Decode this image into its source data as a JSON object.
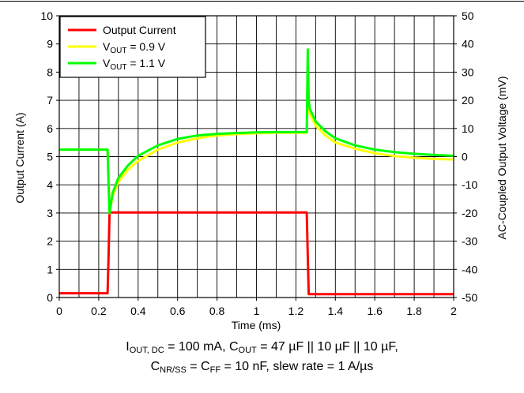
{
  "chart_data": {
    "type": "line",
    "xlabel": "Time (ms)",
    "ylabel_left": "Output Current (A)",
    "ylabel_right": "AC-Coupled Output Voltage (mV)",
    "xlim": [
      0,
      2
    ],
    "ylim_left": [
      0,
      10
    ],
    "ylim_right": [
      -50,
      50
    ],
    "x_ticks": [
      "0",
      "0.2",
      "0.4",
      "0.6",
      "0.8",
      "1",
      "1.2",
      "1.4",
      "1.6",
      "1.8",
      "2"
    ],
    "y_left_ticks": [
      "0",
      "1",
      "2",
      "3",
      "4",
      "5",
      "6",
      "7",
      "8",
      "9",
      "10"
    ],
    "y_right_ticks": [
      "-50",
      "-40",
      "-30",
      "-20",
      "-10",
      "0",
      "10",
      "20",
      "30",
      "40",
      "50"
    ],
    "grid": true,
    "legend_position": "top-left",
    "series": [
      {
        "name": "Output Current",
        "axis": "left",
        "color": "#ff0000",
        "x": [
          0,
          0.245,
          0.25,
          0.255,
          0.5,
          1.0,
          1.255,
          1.26,
          1.265,
          2.0
        ],
        "y": [
          0.15,
          0.15,
          1.5,
          3.02,
          3.02,
          3.02,
          3.02,
          1.5,
          0.12,
          0.12
        ]
      },
      {
        "name": "VOUT = 0.9 V",
        "axis": "right",
        "color": "#ffff00",
        "x": [
          0,
          0.245,
          0.25,
          0.255,
          0.27,
          0.3,
          0.35,
          0.4,
          0.5,
          0.6,
          0.7,
          0.8,
          0.9,
          1.0,
          1.1,
          1.2,
          1.255,
          1.26,
          1.265,
          1.27,
          1.3,
          1.35,
          1.4,
          1.5,
          1.6,
          1.7,
          1.8,
          1.9,
          2.0
        ],
        "y": [
          2.5,
          2.5,
          -8,
          -20,
          -14,
          -9,
          -4.5,
          -1.5,
          2.5,
          5,
          6.5,
          7.5,
          8,
          8.3,
          8.5,
          8.5,
          8.5,
          30,
          18,
          15,
          11,
          7.5,
          5,
          2.8,
          1.2,
          0.2,
          -0.4,
          -0.8,
          -1.0
        ]
      },
      {
        "name": "VOUT = 1.1 V",
        "axis": "right",
        "color": "#00ff00",
        "x": [
          0,
          0.245,
          0.25,
          0.255,
          0.27,
          0.3,
          0.35,
          0.4,
          0.5,
          0.6,
          0.7,
          0.8,
          0.9,
          1.0,
          1.1,
          1.2,
          1.255,
          1.26,
          1.265,
          1.27,
          1.3,
          1.35,
          1.4,
          1.5,
          1.6,
          1.7,
          1.8,
          1.9,
          2.0
        ],
        "y": [
          2.5,
          2.5,
          -10,
          -20,
          -13,
          -7.5,
          -3,
          0.3,
          4,
          6.3,
          7.5,
          8.1,
          8.4,
          8.6,
          8.7,
          8.7,
          8.7,
          38,
          20,
          17,
          12.5,
          9,
          6.5,
          4,
          2.5,
          1.6,
          1.0,
          0.6,
          0.3
        ]
      }
    ],
    "legend": {
      "items": [
        {
          "color": "#ff0000",
          "main": "Output Current",
          "sub": "",
          "tail": ""
        },
        {
          "color": "#ffff00",
          "main": "V",
          "sub": "OUT",
          "tail": " = 0.9 V"
        },
        {
          "color": "#00ff00",
          "main": "V",
          "sub": "OUT",
          "tail": " = 1.1 V"
        }
      ]
    }
  },
  "caption": {
    "line1": {
      "p1": "I",
      "s1": "OUT, DC",
      "p2": " = 100 mA, C",
      "s2": "OUT",
      "p3": " = 47 µF || 10 µF || 10 µF,"
    },
    "line2": {
      "p1": "C",
      "s1": "NR/SS",
      "p2": " = C",
      "s2": "FF",
      "p3": " = 10 nF, slew rate = 1 A/µs"
    }
  }
}
